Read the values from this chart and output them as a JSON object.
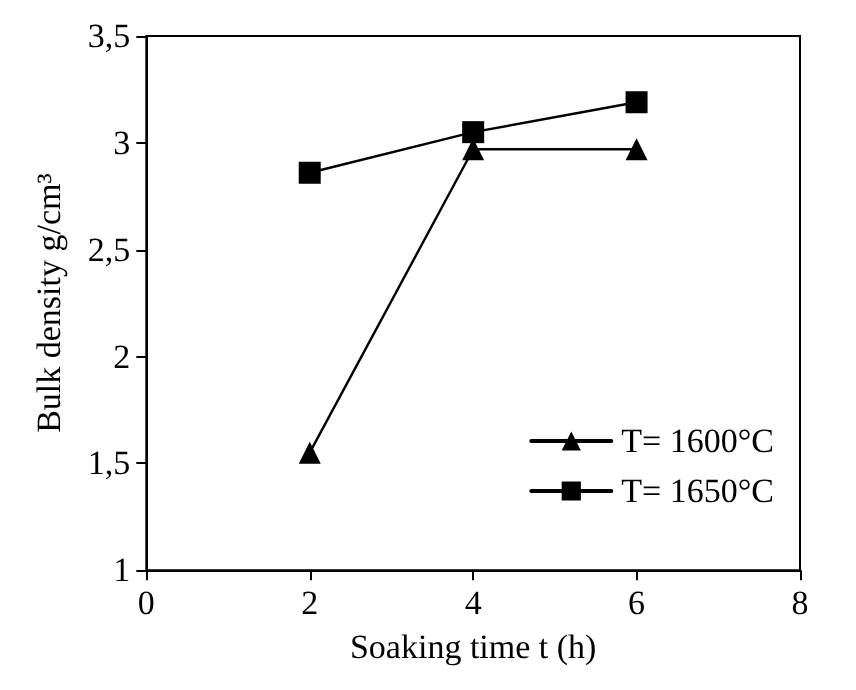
{
  "chart_data": {
    "type": "line",
    "xlabel": "Soaking time t (h)",
    "ylabel": "Bulk density g/cm³",
    "x": [
      2,
      4,
      6
    ],
    "series": [
      {
        "name": "T= 1600°C",
        "color": "#000000",
        "marker": "triangle",
        "values": [
          1.55,
          2.97,
          2.97
        ]
      },
      {
        "name": "T= 1650°C",
        "color": "#000000",
        "marker": "square",
        "values": [
          2.86,
          3.05,
          3.19
        ]
      }
    ],
    "xlim": [
      0,
      8
    ],
    "xticks": [
      0,
      2,
      4,
      6,
      8
    ],
    "ylim": [
      1,
      3.5
    ],
    "yticks": [
      1,
      {
        "value": 1.5,
        "label": "1,5"
      },
      2,
      {
        "value": 2.5,
        "label": "2,5"
      },
      3,
      {
        "value": 3.5,
        "label": "3,5"
      }
    ],
    "grid": false,
    "legend": "bottom right",
    "line_style": "solid"
  }
}
